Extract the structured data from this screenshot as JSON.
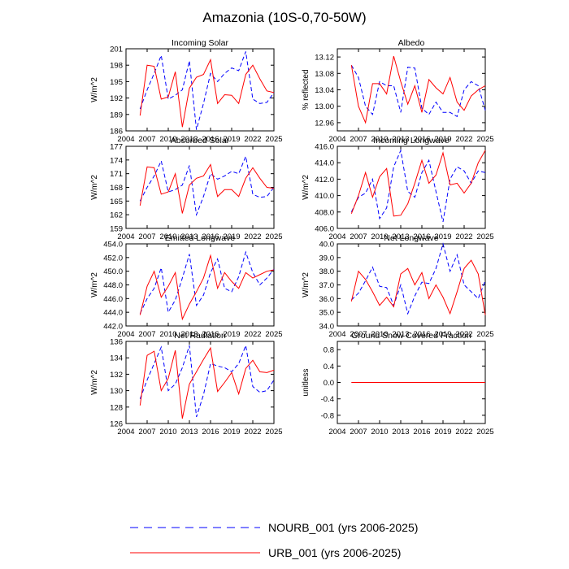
{
  "title": "Amazonia (10S-0,70-50W)",
  "colors": {
    "nourb": "#0000ff",
    "urb": "#ff0000",
    "zero_line": "#9b6bd6"
  },
  "legend": [
    {
      "label": "NOURB_001 (yrs 2006-2025)",
      "color": "#0000ff",
      "dash": true
    },
    {
      "label": "URB_001 (yrs 2006-2025)",
      "color": "#ff0000",
      "dash": false
    }
  ],
  "chart_data": [
    {
      "type": "line",
      "title": "Incoming Solar",
      "ylabel": "W/m^2",
      "xlim": [
        2004,
        2025
      ],
      "xticks": [
        "2004",
        "2007",
        "2010",
        "2013",
        "2016",
        "2019",
        "2022",
        "2025"
      ],
      "ylim": [
        186,
        201
      ],
      "yticks": [
        "186",
        "189",
        "192",
        "195",
        "198",
        "201"
      ],
      "x": [
        2006,
        2007,
        2008,
        2009,
        2010,
        2011,
        2012,
        2013,
        2014,
        2015,
        2016,
        2017,
        2018,
        2019,
        2020,
        2021,
        2022,
        2023,
        2024,
        2025
      ],
      "series": [
        {
          "name": "NOURB_001",
          "values": [
            190.0,
            193.5,
            196.5,
            199.8,
            191.8,
            192.5,
            193.5,
            198.8,
            186.2,
            191.0,
            196.5,
            195.0,
            196.5,
            197.5,
            197.0,
            200.5,
            191.8,
            191.0,
            191.2,
            193.0
          ]
        },
        {
          "name": "URB_001",
          "values": [
            188.8,
            198.0,
            197.8,
            191.8,
            192.2,
            196.8,
            186.7,
            193.8,
            195.8,
            196.3,
            199.0,
            191.0,
            192.6,
            192.5,
            191.0,
            196.3,
            198.0,
            195.5,
            193.3,
            193.0
          ]
        }
      ]
    },
    {
      "type": "line",
      "title": "Albedo",
      "ylabel": "% reflected",
      "xlim": [
        2004,
        2025
      ],
      "xticks": [
        "2004",
        "2007",
        "2010",
        "2013",
        "2016",
        "2019",
        "2022",
        "2025"
      ],
      "ylim": [
        12.94,
        13.14
      ],
      "yticks": [
        "12.96",
        "13.00",
        "13.04",
        "13.08",
        "13.12"
      ],
      "x": [
        2006,
        2007,
        2008,
        2009,
        2010,
        2011,
        2012,
        2013,
        2014,
        2015,
        2016,
        2017,
        2018,
        2019,
        2020,
        2021,
        2022,
        2023,
        2024,
        2025
      ],
      "series": [
        {
          "name": "NOURB_001",
          "values": [
            13.1,
            13.07,
            13.0,
            12.98,
            13.06,
            13.05,
            13.05,
            12.985,
            13.095,
            13.093,
            12.995,
            12.98,
            13.01,
            12.985,
            12.985,
            12.975,
            13.04,
            13.06,
            13.05,
            12.99
          ]
        },
        {
          "name": "URB_001",
          "values": [
            13.1,
            13.0,
            12.96,
            13.055,
            13.055,
            13.03,
            13.122,
            13.06,
            13.005,
            13.05,
            12.985,
            13.065,
            13.045,
            13.03,
            13.07,
            13.01,
            12.99,
            13.025,
            13.04,
            13.05
          ]
        }
      ]
    },
    {
      "type": "line",
      "title": "Absorbed Solar",
      "ylabel": "W/m^2",
      "xlim": [
        2004,
        2025
      ],
      "xticks": [
        "2004",
        "2007",
        "2010",
        "2013",
        "2016",
        "2019",
        "2022",
        "2025"
      ],
      "ylim": [
        159,
        177
      ],
      "yticks": [
        "159",
        "162",
        "165",
        "168",
        "171",
        "174",
        "177"
      ],
      "x": [
        2006,
        2007,
        2008,
        2009,
        2010,
        2011,
        2012,
        2013,
        2014,
        2015,
        2016,
        2017,
        2018,
        2019,
        2020,
        2021,
        2022,
        2023,
        2024,
        2025
      ],
      "series": [
        {
          "name": "NOURB_001",
          "values": [
            165.0,
            168.0,
            170.5,
            173.8,
            167.0,
            167.5,
            168.5,
            172.8,
            162.0,
            166.0,
            171.0,
            169.8,
            170.5,
            171.5,
            171.0,
            174.8,
            166.5,
            165.8,
            166.0,
            168.0
          ]
        },
        {
          "name": "URB_001",
          "values": [
            164.0,
            172.5,
            172.3,
            166.5,
            167.0,
            171.0,
            162.3,
            168.5,
            170.0,
            170.5,
            173.0,
            166.0,
            167.5,
            167.5,
            166.0,
            170.0,
            172.3,
            170.0,
            168.0,
            167.8
          ]
        }
      ]
    },
    {
      "type": "line",
      "title": "Incoming Longwave",
      "ylabel": "W/m^2",
      "xlim": [
        2004,
        2025
      ],
      "xticks": [
        "2004",
        "2007",
        "2010",
        "2013",
        "2016",
        "2019",
        "2022",
        "2025"
      ],
      "ylim": [
        406,
        416
      ],
      "yticks": [
        "406.0",
        "408.0",
        "410.0",
        "412.0",
        "414.0",
        "416.0"
      ],
      "x": [
        2006,
        2007,
        2008,
        2009,
        2010,
        2011,
        2012,
        2013,
        2014,
        2015,
        2016,
        2017,
        2018,
        2019,
        2020,
        2021,
        2022,
        2023,
        2024,
        2025
      ],
      "series": [
        {
          "name": "NOURB_001",
          "values": [
            408.0,
            409.8,
            410.3,
            412.0,
            407.2,
            408.5,
            413.5,
            415.5,
            410.5,
            409.8,
            412.8,
            414.3,
            410.5,
            406.8,
            412.0,
            413.5,
            413.0,
            411.5,
            413.0,
            412.8
          ]
        },
        {
          "name": "URB_001",
          "values": [
            407.8,
            410.0,
            412.8,
            409.8,
            412.3,
            413.3,
            407.5,
            407.6,
            409.0,
            411.5,
            414.3,
            411.5,
            412.5,
            415.2,
            411.3,
            411.5,
            410.3,
            411.5,
            414.0,
            415.5
          ]
        }
      ]
    },
    {
      "type": "line",
      "title": "Emitted Longwave",
      "ylabel": "W/m^2",
      "xlim": [
        2004,
        2025
      ],
      "xticks": [
        "2004",
        "2007",
        "2010",
        "2013",
        "2016",
        "2019",
        "2022",
        "2025"
      ],
      "ylim": [
        442,
        454
      ],
      "yticks": [
        "442.0",
        "444.0",
        "446.0",
        "448.0",
        "450.0",
        "452.0",
        "454.0"
      ],
      "x": [
        2006,
        2007,
        2008,
        2009,
        2010,
        2011,
        2012,
        2013,
        2014,
        2015,
        2016,
        2017,
        2018,
        2019,
        2020,
        2021,
        2022,
        2023,
        2024,
        2025
      ],
      "series": [
        {
          "name": "NOURB_001",
          "values": [
            443.8,
            446.0,
            447.5,
            450.5,
            444.0,
            445.8,
            449.0,
            452.5,
            445.0,
            446.5,
            449.8,
            451.8,
            447.5,
            447.0,
            449.2,
            452.8,
            449.8,
            448.0,
            449.0,
            450.3
          ]
        },
        {
          "name": "URB_001",
          "values": [
            443.6,
            447.8,
            450.0,
            446.2,
            447.8,
            449.8,
            443.0,
            445.2,
            447.0,
            449.0,
            452.3,
            447.5,
            449.8,
            448.5,
            447.5,
            449.8,
            449.0,
            449.5,
            450.0,
            450.2
          ]
        }
      ]
    },
    {
      "type": "line",
      "title": "Net Longwave",
      "ylabel": "W/m^2",
      "xlim": [
        2004,
        2025
      ],
      "xticks": [
        "2004",
        "2007",
        "2010",
        "2013",
        "2016",
        "2019",
        "2022",
        "2025"
      ],
      "ylim": [
        34,
        40
      ],
      "yticks": [
        "34.0",
        "35.0",
        "36.0",
        "37.0",
        "38.0",
        "39.0",
        "40.0"
      ],
      "x": [
        2006,
        2007,
        2008,
        2009,
        2010,
        2011,
        2012,
        2013,
        2014,
        2015,
        2016,
        2017,
        2018,
        2019,
        2020,
        2021,
        2022,
        2023,
        2024,
        2025
      ],
      "series": [
        {
          "name": "NOURB_001",
          "values": [
            35.9,
            36.4,
            37.3,
            38.3,
            36.9,
            36.8,
            35.5,
            37.0,
            34.9,
            36.2,
            37.2,
            37.1,
            38.2,
            40.0,
            38.0,
            39.2,
            37.0,
            36.5,
            36.0,
            37.3
          ]
        },
        {
          "name": "URB_001",
          "values": [
            35.8,
            38.0,
            37.4,
            36.5,
            35.5,
            36.1,
            35.4,
            37.8,
            38.2,
            37.0,
            37.9,
            36.0,
            37.0,
            36.1,
            34.9,
            36.5,
            38.2,
            38.8,
            37.8,
            34.8
          ]
        }
      ]
    },
    {
      "type": "line",
      "title": "Net Radiation",
      "ylabel": "W/m^2",
      "xlim": [
        2004,
        2025
      ],
      "xticks": [
        "2004",
        "2007",
        "2010",
        "2013",
        "2016",
        "2019",
        "2022",
        "2025"
      ],
      "ylim": [
        126,
        136
      ],
      "yticks": [
        "126",
        "128",
        "130",
        "132",
        "134",
        "136"
      ],
      "x": [
        2006,
        2007,
        2008,
        2009,
        2010,
        2011,
        2012,
        2013,
        2014,
        2015,
        2016,
        2017,
        2018,
        2019,
        2020,
        2021,
        2022,
        2023,
        2024,
        2025
      ],
      "series": [
        {
          "name": "NOURB_001",
          "values": [
            129.0,
            131.3,
            133.3,
            135.3,
            130.0,
            130.8,
            132.8,
            135.5,
            126.8,
            129.5,
            133.3,
            133.0,
            132.8,
            132.3,
            133.3,
            135.5,
            130.5,
            129.8,
            130.0,
            131.3
          ]
        },
        {
          "name": "URB_001",
          "values": [
            128.2,
            134.3,
            134.8,
            130.0,
            131.5,
            134.9,
            126.6,
            130.8,
            132.3,
            133.8,
            135.2,
            129.9,
            131.0,
            132.2,
            129.6,
            132.7,
            133.7,
            132.3,
            132.2,
            132.5
          ]
        }
      ]
    },
    {
      "type": "line",
      "title": "Ground Snow Covered Fraction",
      "ylabel": "unitless",
      "xlim": [
        2004,
        2025
      ],
      "xticks": [
        "2004",
        "2007",
        "2010",
        "2013",
        "2016",
        "2019",
        "2022",
        "2025"
      ],
      "ylim": [
        -1,
        1
      ],
      "yticks": [
        "-0.8",
        "-0.4",
        "0.0",
        "0.4",
        "0.8"
      ],
      "x": [
        2006,
        2007,
        2008,
        2009,
        2010,
        2011,
        2012,
        2013,
        2014,
        2015,
        2016,
        2017,
        2018,
        2019,
        2020,
        2021,
        2022,
        2023,
        2024,
        2025
      ],
      "series": [
        {
          "name": "NOURB_001",
          "values": [
            0,
            0,
            0,
            0,
            0,
            0,
            0,
            0,
            0,
            0,
            0,
            0,
            0,
            0,
            0,
            0,
            0,
            0,
            0,
            0
          ]
        },
        {
          "name": "URB_001",
          "values": [
            0,
            0,
            0,
            0,
            0,
            0,
            0,
            0,
            0,
            0,
            0,
            0,
            0,
            0,
            0,
            0,
            0,
            0,
            0,
            0
          ]
        }
      ]
    }
  ]
}
